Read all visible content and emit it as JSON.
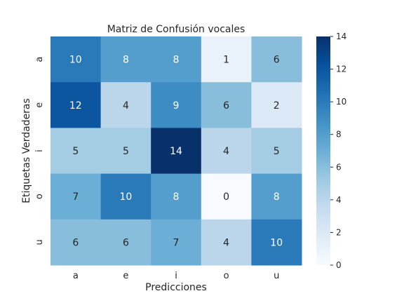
{
  "chart_data": {
    "type": "heatmap",
    "title": "Matriz de Confusión vocales",
    "xlabel": "Predicciones",
    "ylabel": "Etiquetas Verdaderas",
    "x_categories": [
      "a",
      "e",
      "i",
      "o",
      "u"
    ],
    "y_categories": [
      "a",
      "e",
      "i",
      "o",
      "u"
    ],
    "values": [
      [
        10,
        8,
        8,
        1,
        6
      ],
      [
        12,
        4,
        9,
        6,
        2
      ],
      [
        5,
        5,
        14,
        4,
        5
      ],
      [
        7,
        10,
        8,
        0,
        8
      ],
      [
        6,
        6,
        7,
        4,
        10
      ]
    ],
    "colorbar": {
      "min": 0,
      "max": 14,
      "ticks": [
        "0",
        "2",
        "4",
        "6",
        "8",
        "10",
        "12",
        "14"
      ],
      "colormap": "Blues"
    },
    "grid": false,
    "legend": "colorbar-right"
  }
}
